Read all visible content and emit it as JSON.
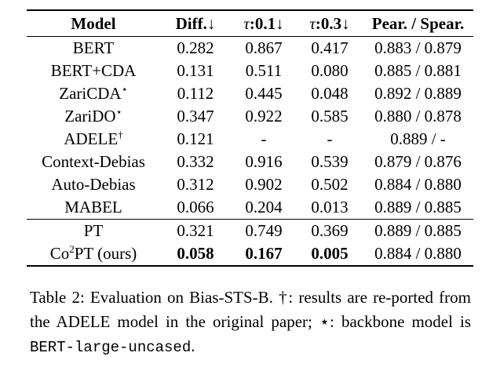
{
  "table": {
    "headers": {
      "model": "Model",
      "diff": "Diff.",
      "diff_arrow": "↓",
      "tau1_symbol": "τ",
      "tau1_rest": ":0.1",
      "tau1_arrow": "↓",
      "tau3_symbol": "τ",
      "tau3_rest": ":0.3",
      "tau3_arrow": "↓",
      "pear_spear": "Pear. / Spear."
    },
    "rows": [
      {
        "model": "BERT",
        "mark": "",
        "diff": "0.282",
        "tau1": "0.867",
        "tau3": "0.417",
        "ps": "0.883 / 0.879"
      },
      {
        "model": "BERT+CDA",
        "mark": "",
        "diff": "0.131",
        "tau1": "0.511",
        "tau3": "0.080",
        "ps": "0.885 / 0.881"
      },
      {
        "model": "ZariCDA",
        "mark": "⋆",
        "diff": "0.112",
        "tau1": "0.445",
        "tau3": "0.048",
        "ps": "0.892 / 0.889"
      },
      {
        "model": "ZariDO",
        "mark": "⋆",
        "diff": "0.347",
        "tau1": "0.922",
        "tau3": "0.585",
        "ps": "0.880 / 0.878"
      },
      {
        "model": "ADELE",
        "mark": "†",
        "diff": "0.121",
        "tau1": "-",
        "tau3": "-",
        "ps": "0.889 / -"
      },
      {
        "model": "Context-Debias",
        "mark": "",
        "diff": "0.332",
        "tau1": "0.916",
        "tau3": "0.539",
        "ps": "0.879 / 0.876"
      },
      {
        "model": "Auto-Debias",
        "mark": "",
        "diff": "0.312",
        "tau1": "0.902",
        "tau3": "0.502",
        "ps": "0.884 / 0.880"
      },
      {
        "model": "MABEL",
        "mark": "",
        "diff": "0.066",
        "tau1": "0.204",
        "tau3": "0.013",
        "ps": "0.889 / 0.885"
      }
    ],
    "pt_row": {
      "model": "PT",
      "diff": "0.321",
      "tau1": "0.749",
      "tau3": "0.369",
      "ps": "0.889 / 0.885"
    },
    "ours_row": {
      "model_prefix": "Co",
      "model_sup": "2",
      "model_suffix": "PT (ours)",
      "diff": "0.058",
      "tau1": "0.167",
      "tau3": "0.005",
      "ps": "0.884 / 0.880"
    }
  },
  "caption": {
    "part1": "Table 2: Evaluation on Bias-STS-B. †: results are re-ported from the ADELE model in the original paper; ⋆: backbone model is ",
    "mono": "BERT-large-uncased",
    "part2": "."
  }
}
